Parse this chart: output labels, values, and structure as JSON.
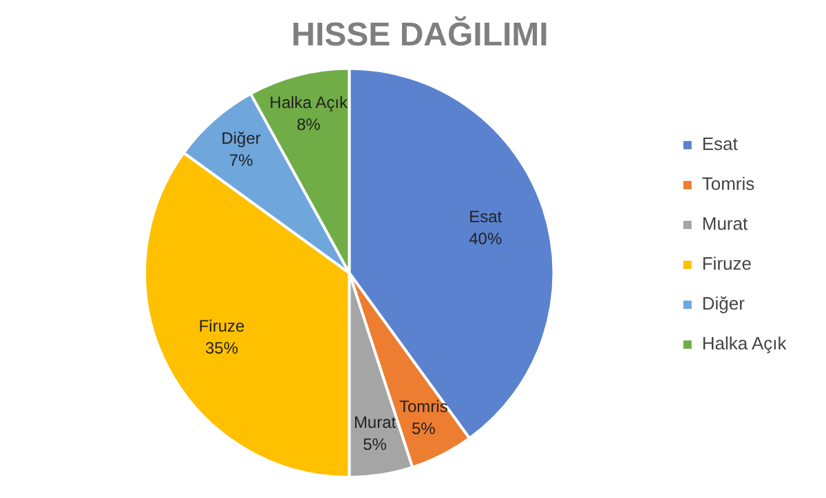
{
  "chart_data": {
    "type": "pie",
    "title": "HISSE DAĞILIMI",
    "categories": [
      "Esat",
      "Tomris",
      "Murat",
      "Firuze",
      "Diğer",
      "Halka Açık"
    ],
    "values": [
      40,
      5,
      5,
      35,
      7,
      8
    ],
    "colors": [
      "#5a82cf",
      "#ed7d31",
      "#a5a5a5",
      "#ffc000",
      "#6fa6dc",
      "#70ad47"
    ],
    "value_labels": [
      "40%",
      "5%",
      "5%",
      "35%",
      "7%",
      "8%"
    ],
    "legend": "right"
  }
}
